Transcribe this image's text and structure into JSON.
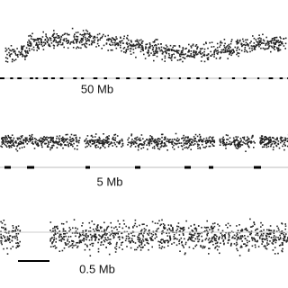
{
  "panels": [
    {
      "scale_label": "50 Mb"
    },
    {
      "scale_label": "5 Mb"
    },
    {
      "scale_label": "0.5 Mb"
    }
  ]
}
